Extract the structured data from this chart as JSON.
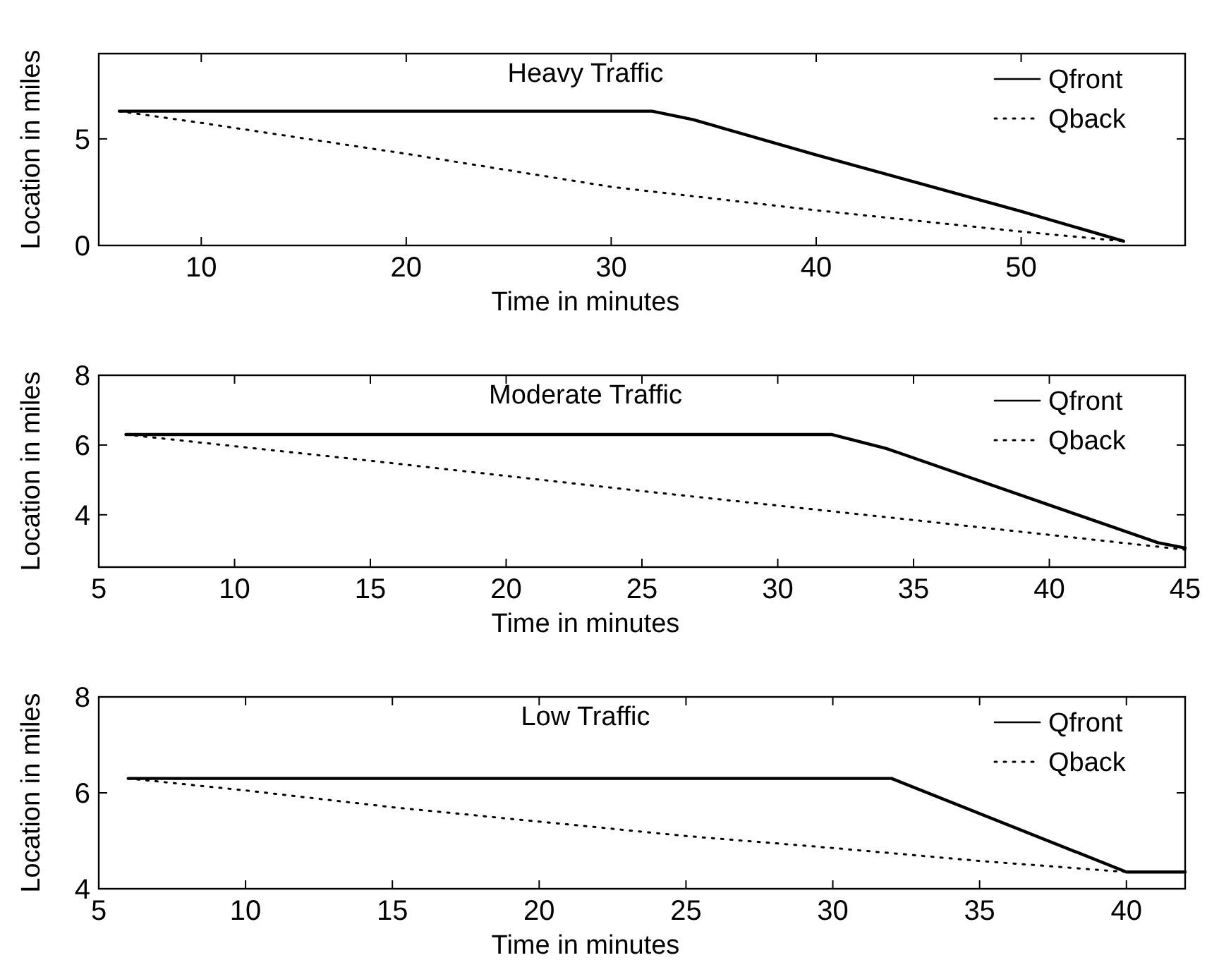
{
  "chart_data": [
    {
      "type": "line",
      "title": "Heavy Traffic",
      "xlabel": "Time in minutes",
      "ylabel": "Location in miles",
      "xlim": [
        5,
        58
      ],
      "xticks": [
        10,
        20,
        30,
        40,
        50
      ],
      "ylim": [
        0,
        9
      ],
      "yticks": [
        0,
        5
      ],
      "legend": "top right",
      "grid": false,
      "series": [
        {
          "name": "Qfront",
          "color": "#000000",
          "line_style": "solid",
          "x": [
            6,
            32,
            34,
            40,
            50,
            55
          ],
          "values": [
            6.3,
            6.3,
            5.9,
            4.25,
            1.6,
            0.2
          ]
        },
        {
          "name": "Qback",
          "color": "#000000",
          "line_style": "dotted",
          "x": [
            6,
            10,
            20,
            30,
            40,
            50,
            55
          ],
          "values": [
            6.3,
            5.75,
            4.3,
            2.75,
            1.65,
            0.65,
            0.2
          ]
        }
      ]
    },
    {
      "type": "line",
      "title": "Moderate Traffic",
      "xlabel": "Time in minutes",
      "ylabel": "Location in miles",
      "xlim": [
        5,
        45
      ],
      "xticks": [
        5,
        10,
        15,
        20,
        25,
        30,
        35,
        40,
        45
      ],
      "ylim": [
        2.5,
        8
      ],
      "yticks": [
        4,
        6,
        8
      ],
      "legend": "top right",
      "grid": false,
      "series": [
        {
          "name": "Qfront",
          "color": "#000000",
          "line_style": "solid",
          "x": [
            6,
            32,
            34,
            44,
            45
          ],
          "values": [
            6.3,
            6.3,
            5.9,
            3.2,
            3.05
          ]
        },
        {
          "name": "Qback",
          "color": "#000000",
          "line_style": "dotted",
          "x": [
            6,
            15,
            25,
            35,
            45
          ],
          "values": [
            6.3,
            5.55,
            4.68,
            3.85,
            3.0
          ]
        }
      ]
    },
    {
      "type": "line",
      "title": "Low Traffic",
      "xlabel": "Time in minutes",
      "ylabel": "Location in miles",
      "xlim": [
        5,
        42
      ],
      "xticks": [
        5,
        10,
        15,
        20,
        25,
        30,
        35,
        40
      ],
      "ylim": [
        4,
        8
      ],
      "yticks": [
        4,
        6,
        8
      ],
      "legend": "top right",
      "grid": false,
      "series": [
        {
          "name": "Qfront",
          "color": "#000000",
          "line_style": "solid",
          "x": [
            6,
            32,
            40,
            42
          ],
          "values": [
            6.3,
            6.3,
            4.35,
            4.35
          ]
        },
        {
          "name": "Qback",
          "color": "#000000",
          "line_style": "dotted",
          "x": [
            6,
            10,
            15,
            20,
            25,
            30,
            35,
            40
          ],
          "values": [
            6.3,
            6.05,
            5.7,
            5.4,
            5.1,
            4.85,
            4.58,
            4.35
          ]
        }
      ]
    }
  ]
}
